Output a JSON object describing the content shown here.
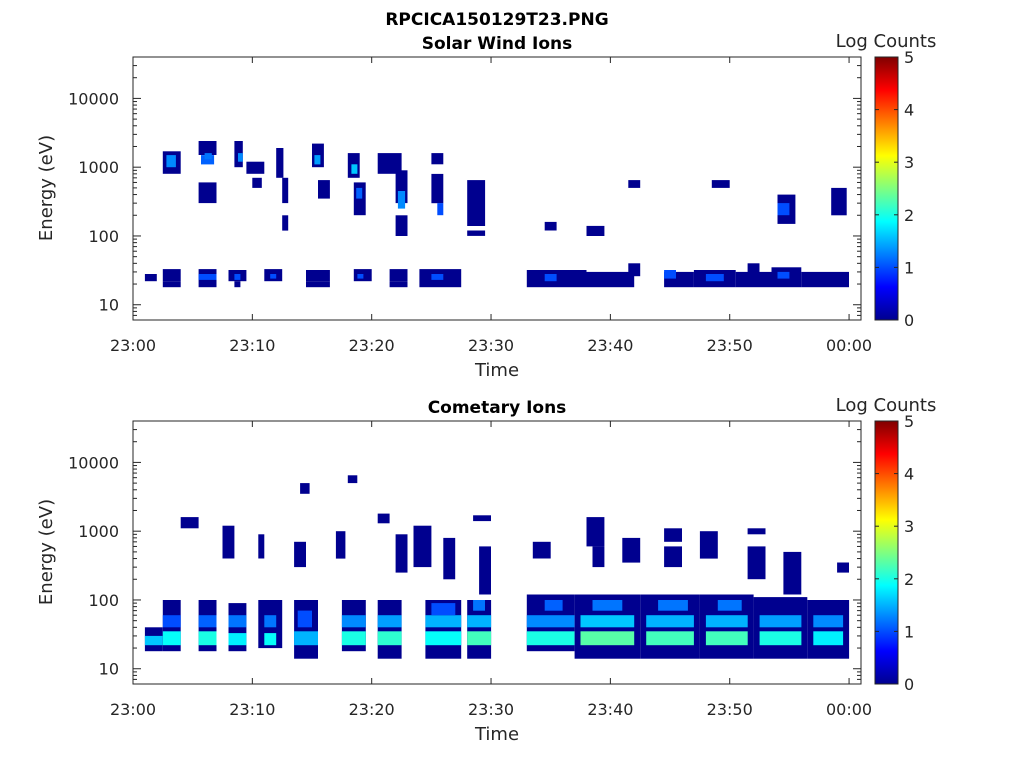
{
  "figure": {
    "title": "RPCICA150129T23.PNG"
  },
  "colormap": {
    "name": "jet",
    "stops": [
      "#00008f",
      "#0000ff",
      "#00ffff",
      "#ffff00",
      "#ff0000",
      "#800000"
    ]
  },
  "chart_data": [
    {
      "type": "heatmap",
      "title": "Solar Wind Ions",
      "xlabel": "Time",
      "ylabel": "Energy (eV)",
      "xlim": [
        "23:00",
        "00:01"
      ],
      "ylim": [
        6,
        40000
      ],
      "yscale": "log",
      "xticks": [
        "23:00",
        "23:10",
        "23:20",
        "23:30",
        "23:40",
        "23:50",
        "00:00"
      ],
      "yticks": [
        "10",
        "100",
        "1000",
        "10000"
      ],
      "colorbar_label": "Log Counts",
      "colorbar_ticks": [
        "0",
        "1",
        "2",
        "3",
        "4",
        "5"
      ],
      "clim": [
        0,
        5
      ],
      "cells": [
        [
          1.0,
          2.0,
          22,
          28,
          0
        ],
        [
          2.5,
          4.0,
          22,
          33,
          0
        ],
        [
          2.5,
          4.0,
          18,
          22,
          0
        ],
        [
          5.5,
          7.0,
          18,
          33,
          0
        ],
        [
          5.5,
          7.0,
          23,
          28,
          1
        ],
        [
          8.0,
          9.5,
          22,
          32,
          0
        ],
        [
          8.5,
          9.0,
          23,
          28,
          1
        ],
        [
          8.5,
          9.0,
          18,
          22,
          0
        ],
        [
          11.0,
          12.5,
          22,
          33,
          0
        ],
        [
          11.5,
          12.0,
          24,
          28,
          1
        ],
        [
          14.5,
          16.5,
          22,
          32,
          0
        ],
        [
          14.5,
          16.5,
          18,
          22,
          0
        ],
        [
          18.5,
          20.0,
          22,
          33,
          0
        ],
        [
          18.8,
          19.3,
          24,
          28,
          1
        ],
        [
          21.5,
          23.0,
          22,
          33,
          0
        ],
        [
          21.5,
          23.0,
          18,
          22,
          0
        ],
        [
          24.0,
          27.5,
          18,
          33,
          0
        ],
        [
          25.0,
          26.0,
          23,
          28,
          1
        ],
        [
          33.0,
          38.0,
          18,
          32,
          0
        ],
        [
          34.5,
          35.5,
          22,
          28,
          1
        ],
        [
          38.0,
          42.0,
          18,
          30,
          0
        ],
        [
          41.5,
          42.5,
          26,
          40,
          0
        ],
        [
          44.5,
          47.0,
          18,
          30,
          0
        ],
        [
          44.5,
          45.5,
          24,
          32,
          1
        ],
        [
          47.0,
          50.5,
          18,
          32,
          0
        ],
        [
          48.0,
          49.5,
          22,
          28,
          1
        ],
        [
          50.5,
          53.5,
          18,
          30,
          0
        ],
        [
          51.5,
          52.5,
          24,
          40,
          0
        ],
        [
          53.5,
          56.0,
          18,
          35,
          0
        ],
        [
          54.0,
          55.0,
          24,
          30,
          1
        ],
        [
          56.0,
          60.0,
          18,
          30,
          0
        ],
        [
          2.5,
          4.0,
          800,
          1700,
          0
        ],
        [
          2.8,
          3.6,
          1000,
          1500,
          1.3
        ],
        [
          5.5,
          7.0,
          1500,
          2400,
          0
        ],
        [
          5.7,
          6.8,
          1100,
          1500,
          1.1
        ],
        [
          5.5,
          7.0,
          300,
          600,
          0
        ],
        [
          6.0,
          6.6,
          1300,
          1600,
          1.2
        ],
        [
          8.5,
          9.2,
          1000,
          2400,
          0
        ],
        [
          8.8,
          9.2,
          1200,
          1600,
          1.3
        ],
        [
          9.5,
          11.0,
          800,
          1200,
          0
        ],
        [
          10.0,
          10.8,
          500,
          700,
          0
        ],
        [
          12.0,
          12.6,
          700,
          1900,
          0
        ],
        [
          12.5,
          13.0,
          300,
          700,
          0
        ],
        [
          12.5,
          13.0,
          120,
          200,
          0
        ],
        [
          15.0,
          16.0,
          1000,
          2200,
          0
        ],
        [
          15.2,
          15.7,
          1100,
          1500,
          1.4
        ],
        [
          15.5,
          16.5,
          350,
          650,
          0
        ],
        [
          18.0,
          19.0,
          700,
          1600,
          0
        ],
        [
          18.3,
          18.8,
          800,
          1100,
          1.6
        ],
        [
          18.5,
          19.5,
          200,
          600,
          0
        ],
        [
          18.7,
          19.2,
          350,
          500,
          1.1
        ],
        [
          20.5,
          22.5,
          800,
          1600,
          0
        ],
        [
          22.0,
          23.0,
          300,
          900,
          0
        ],
        [
          22.2,
          22.8,
          250,
          450,
          1.3
        ],
        [
          22.0,
          23.0,
          100,
          200,
          0
        ],
        [
          25.0,
          26.0,
          1100,
          1600,
          0
        ],
        [
          25.0,
          26.0,
          300,
          800,
          0
        ],
        [
          25.5,
          26.0,
          200,
          300,
          1.0
        ],
        [
          28.0,
          29.5,
          140,
          650,
          0
        ],
        [
          28.0,
          29.5,
          100,
          120,
          0
        ],
        [
          34.5,
          35.5,
          120,
          160,
          0
        ],
        [
          38.0,
          39.5,
          100,
          140,
          0
        ],
        [
          41.5,
          42.5,
          500,
          650,
          0
        ],
        [
          48.5,
          50.0,
          500,
          650,
          0
        ],
        [
          54.0,
          55.5,
          150,
          400,
          0
        ],
        [
          54.0,
          55.0,
          200,
          300,
          1.0
        ],
        [
          58.5,
          59.8,
          200,
          500,
          0
        ]
      ]
    },
    {
      "type": "heatmap",
      "title": "Cometary Ions",
      "xlabel": "Time",
      "ylabel": "Energy (eV)",
      "xlim": [
        "23:00",
        "00:01"
      ],
      "ylim": [
        6,
        40000
      ],
      "yscale": "log",
      "xticks": [
        "23:00",
        "23:10",
        "23:20",
        "23:30",
        "23:40",
        "23:50",
        "00:00"
      ],
      "yticks": [
        "10",
        "100",
        "1000",
        "10000"
      ],
      "colorbar_label": "Log Counts",
      "colorbar_ticks": [
        "0",
        "1",
        "2",
        "3",
        "4",
        "5"
      ],
      "clim": [
        0,
        5
      ],
      "cells": [
        [
          1.0,
          2.5,
          18,
          40,
          0
        ],
        [
          1.0,
          2.5,
          22,
          30,
          1.6
        ],
        [
          2.5,
          4.0,
          18,
          100,
          0
        ],
        [
          2.5,
          4.0,
          22,
          35,
          1.9
        ],
        [
          2.5,
          4.0,
          40,
          60,
          1.0
        ],
        [
          5.5,
          7.0,
          18,
          100,
          0
        ],
        [
          5.5,
          7.0,
          22,
          35,
          2.0
        ],
        [
          5.5,
          7.0,
          40,
          60,
          1.1
        ],
        [
          8.0,
          9.5,
          18,
          90,
          0
        ],
        [
          8.0,
          9.5,
          22,
          33,
          1.8
        ],
        [
          8.0,
          9.5,
          40,
          60,
          1.2
        ],
        [
          10.5,
          12.5,
          20,
          100,
          0
        ],
        [
          11.0,
          12.0,
          22,
          33,
          1.9
        ],
        [
          11.0,
          12.0,
          40,
          60,
          1.2
        ],
        [
          13.5,
          15.5,
          14,
          100,
          0
        ],
        [
          13.5,
          15.5,
          22,
          35,
          1.5
        ],
        [
          13.8,
          15.0,
          40,
          70,
          1.0
        ],
        [
          17.5,
          19.5,
          18,
          100,
          0
        ],
        [
          17.5,
          19.5,
          22,
          35,
          2.0
        ],
        [
          17.5,
          19.5,
          40,
          60,
          1.3
        ],
        [
          20.5,
          22.5,
          14,
          100,
          0
        ],
        [
          20.5,
          22.5,
          22,
          35,
          2.1
        ],
        [
          20.5,
          22.5,
          40,
          60,
          1.4
        ],
        [
          24.5,
          27.5,
          14,
          100,
          0
        ],
        [
          24.5,
          27.5,
          22,
          35,
          1.9
        ],
        [
          24.5,
          27.5,
          40,
          60,
          1.5
        ],
        [
          25.0,
          27.0,
          60,
          90,
          1.0
        ],
        [
          28.0,
          30.0,
          14,
          100,
          0
        ],
        [
          28.0,
          30.0,
          22,
          35,
          2.2
        ],
        [
          28.0,
          30.0,
          40,
          60,
          1.5
        ],
        [
          28.5,
          29.5,
          70,
          100,
          1.2
        ],
        [
          33.0,
          37.0,
          18,
          120,
          0
        ],
        [
          33.0,
          37.0,
          22,
          35,
          2.0
        ],
        [
          33.0,
          37.0,
          40,
          60,
          1.3
        ],
        [
          34.5,
          36.0,
          70,
          100,
          1.1
        ],
        [
          37.0,
          42.5,
          14,
          120,
          0
        ],
        [
          37.5,
          42.0,
          22,
          35,
          2.3
        ],
        [
          37.5,
          42.0,
          40,
          60,
          1.6
        ],
        [
          38.5,
          41.0,
          70,
          100,
          1.2
        ],
        [
          42.5,
          47.5,
          14,
          120,
          0
        ],
        [
          43.0,
          47.0,
          22,
          35,
          2.2
        ],
        [
          43.0,
          47.0,
          40,
          60,
          1.5
        ],
        [
          44.0,
          46.5,
          70,
          100,
          1.2
        ],
        [
          47.5,
          52.0,
          14,
          120,
          0
        ],
        [
          48.0,
          51.5,
          22,
          35,
          2.2
        ],
        [
          48.0,
          51.5,
          40,
          60,
          1.5
        ],
        [
          49.0,
          51.0,
          70,
          100,
          1.2
        ],
        [
          52.0,
          56.5,
          14,
          110,
          0
        ],
        [
          52.5,
          56.0,
          22,
          35,
          2.0
        ],
        [
          52.5,
          56.0,
          40,
          60,
          1.4
        ],
        [
          56.5,
          60.0,
          14,
          100,
          0
        ],
        [
          57.0,
          59.5,
          22,
          35,
          1.8
        ],
        [
          57.0,
          59.5,
          40,
          60,
          1.3
        ],
        [
          4.0,
          5.5,
          1100,
          1600,
          0
        ],
        [
          7.5,
          8.5,
          400,
          1200,
          0
        ],
        [
          10.5,
          11.0,
          400,
          900,
          0
        ],
        [
          13.5,
          14.5,
          300,
          700,
          0
        ],
        [
          14.0,
          14.8,
          3500,
          5000,
          0
        ],
        [
          17.0,
          17.8,
          400,
          1000,
          0
        ],
        [
          18.0,
          18.8,
          5000,
          6500,
          0
        ],
        [
          20.5,
          21.5,
          1300,
          1800,
          0
        ],
        [
          22.0,
          23.0,
          250,
          900,
          0
        ],
        [
          23.5,
          25.0,
          300,
          1200,
          0
        ],
        [
          26.0,
          27.0,
          200,
          800,
          0
        ],
        [
          28.5,
          30.0,
          1400,
          1700,
          0
        ],
        [
          29.0,
          30.0,
          120,
          600,
          0
        ],
        [
          33.5,
          35.0,
          400,
          700,
          0
        ],
        [
          38.0,
          39.5,
          600,
          1600,
          0
        ],
        [
          38.5,
          39.5,
          300,
          600,
          0
        ],
        [
          41.0,
          42.5,
          350,
          800,
          0
        ],
        [
          44.5,
          46.0,
          700,
          1100,
          0
        ],
        [
          44.5,
          46.0,
          300,
          600,
          0
        ],
        [
          47.5,
          49.0,
          400,
          1000,
          0
        ],
        [
          51.5,
          53.0,
          200,
          600,
          0
        ],
        [
          51.5,
          53.0,
          900,
          1100,
          0
        ],
        [
          54.5,
          56.0,
          120,
          500,
          0
        ],
        [
          59.0,
          60.0,
          250,
          350,
          0
        ]
      ]
    }
  ]
}
